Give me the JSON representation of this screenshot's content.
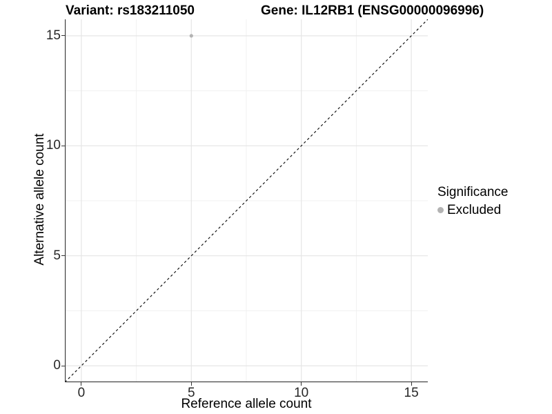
{
  "chart_data": {
    "type": "scatter",
    "title_variant": "Variant: rs183211050",
    "title_gene": "Gene: IL12RB1 (ENSG00000096996)",
    "xlabel": "Reference allele count",
    "ylabel": "Alternative allele count",
    "xlim": [
      -0.75,
      15.75
    ],
    "ylim": [
      -0.75,
      15.75
    ],
    "x_ticks": [
      0,
      5,
      10,
      15
    ],
    "y_ticks": [
      0,
      5,
      10,
      15
    ],
    "x_minor_ticks": [
      2.5,
      7.5,
      12.5
    ],
    "y_minor_ticks": [
      2.5,
      7.5,
      12.5
    ],
    "grid": true,
    "legend_position": "right",
    "series": [
      {
        "name": "Excluded",
        "color": "#b3b3b3",
        "points": [
          {
            "x": 5,
            "y": 15
          }
        ]
      }
    ],
    "reference_line": {
      "slope": 1,
      "intercept": 0,
      "style": "dashed",
      "color": "#000000"
    },
    "legend": {
      "title": "Significance",
      "entries": [
        {
          "label": "Excluded",
          "color": "#b3b3b3"
        }
      ]
    }
  },
  "colors": {
    "background": "#ffffff",
    "grid_major": "#e5e5e5",
    "grid_minor": "#f0f0f0",
    "axis_line": "#333333",
    "tick_text": "#262626",
    "title_text": "#000000",
    "point": "#b3b3b3",
    "dashed_line": "#000000"
  }
}
